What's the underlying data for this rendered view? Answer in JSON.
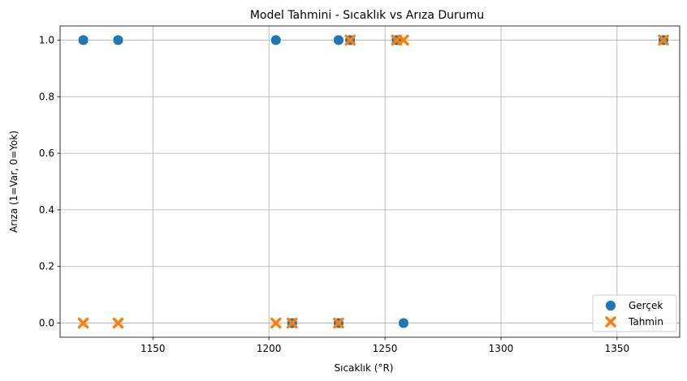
{
  "chart_data": {
    "type": "scatter",
    "title": "Model Tahmini - Sıcaklık vs Arıza Durumu",
    "xlabel": "Sıcaklık (°R)",
    "ylabel": "Arıza (1=Var, 0=Yok)",
    "xlim": [
      1110,
      1377
    ],
    "ylim": [
      -0.05,
      1.05
    ],
    "xticks": [
      1150,
      1200,
      1250,
      1300,
      1350
    ],
    "yticks": [
      0.0,
      0.2,
      0.4,
      0.6,
      0.8,
      1.0
    ],
    "xtick_labels": [
      "1150",
      "1200",
      "1250",
      "1300",
      "1350"
    ],
    "ytick_labels": [
      "0.0",
      "0.2",
      "0.4",
      "0.6",
      "0.8",
      "1.0"
    ],
    "grid": true,
    "legend_position": "lower-right",
    "series": [
      {
        "name": "Gerçek",
        "marker": "circle",
        "color": "#1f77b4",
        "points": [
          {
            "x": 1120,
            "y": 1
          },
          {
            "x": 1135,
            "y": 1
          },
          {
            "x": 1203,
            "y": 1
          },
          {
            "x": 1230,
            "y": 1
          },
          {
            "x": 1235,
            "y": 1
          },
          {
            "x": 1255,
            "y": 1
          },
          {
            "x": 1370,
            "y": 1
          },
          {
            "x": 1210,
            "y": 0
          },
          {
            "x": 1230,
            "y": 0
          },
          {
            "x": 1258,
            "y": 0
          }
        ]
      },
      {
        "name": "Tahmin",
        "marker": "x",
        "color": "#ff7f0e",
        "points": [
          {
            "x": 1120,
            "y": 0
          },
          {
            "x": 1135,
            "y": 0
          },
          {
            "x": 1203,
            "y": 0
          },
          {
            "x": 1210,
            "y": 0
          },
          {
            "x": 1230,
            "y": 0
          },
          {
            "x": 1235,
            "y": 1
          },
          {
            "x": 1255,
            "y": 1
          },
          {
            "x": 1258,
            "y": 1
          },
          {
            "x": 1370,
            "y": 1
          }
        ]
      }
    ]
  }
}
